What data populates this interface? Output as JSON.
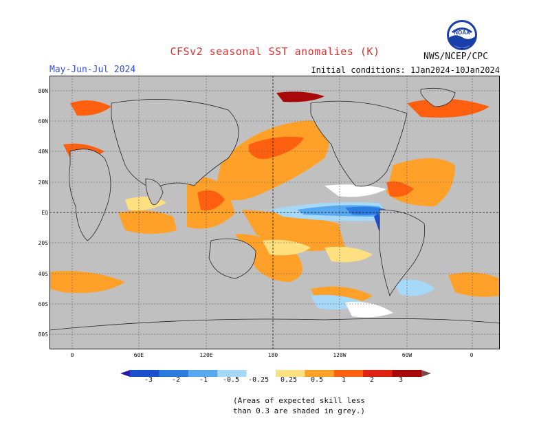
{
  "header": {
    "title": "CFSv2 seasonal SST anomalies (K)",
    "agency": "NWS/NCEP/CPC",
    "season": "May-Jun-Jul 2024",
    "initial_conditions": "Initial conditions: 1Jan2024-10Jan2024",
    "logo_text": "NOAA"
  },
  "map": {
    "projection": "cylindrical equidistant, Pacific-centered",
    "lat_labels": [
      "80N",
      "60N",
      "40N",
      "20N",
      "EQ",
      "20S",
      "40S",
      "60S",
      "80S"
    ],
    "lon_labels": [
      "0",
      "60E",
      "120E",
      "180",
      "120W",
      "60W",
      "0"
    ],
    "land_color": "#c0c0c0",
    "skill_mask_note": "Areas of expected skill less than 0.3 are shaded in grey",
    "features": [
      {
        "region": "Equatorial eastern Pacific cold tongue",
        "anomaly_K": -0.5
      },
      {
        "region": "Peru coast",
        "anomaly_K": -1.0
      },
      {
        "region": "North Pacific (Kuroshio extension)",
        "anomaly_K": 1.0
      },
      {
        "region": "Tropical North Atlantic",
        "anomaly_K": 0.75
      },
      {
        "region": "Indian Ocean",
        "anomaly_K": 0.5
      },
      {
        "region": "Western/South Pacific warm pool",
        "anomaly_K": 0.75
      },
      {
        "region": "Southern Ocean near 40-50S",
        "anomaly_K": 0.75
      }
    ]
  },
  "colorbar": {
    "labels": [
      "-3",
      "-2",
      "-1",
      "-0.5",
      "-0.25",
      "0.25",
      "0.5",
      "1",
      "2",
      "3"
    ],
    "colors": [
      "#2a1aa8",
      "#1a4fd0",
      "#2c7be0",
      "#58a8f0",
      "#a6d8f8",
      "#ffffff",
      "#ffe080",
      "#ffa028",
      "#ff6010",
      "#e02010",
      "#a80808",
      "#7a4848"
    ]
  },
  "footnote": {
    "line1": "(Areas of expected skill less",
    "line2": "than 0.3 are shaded in grey.)"
  }
}
